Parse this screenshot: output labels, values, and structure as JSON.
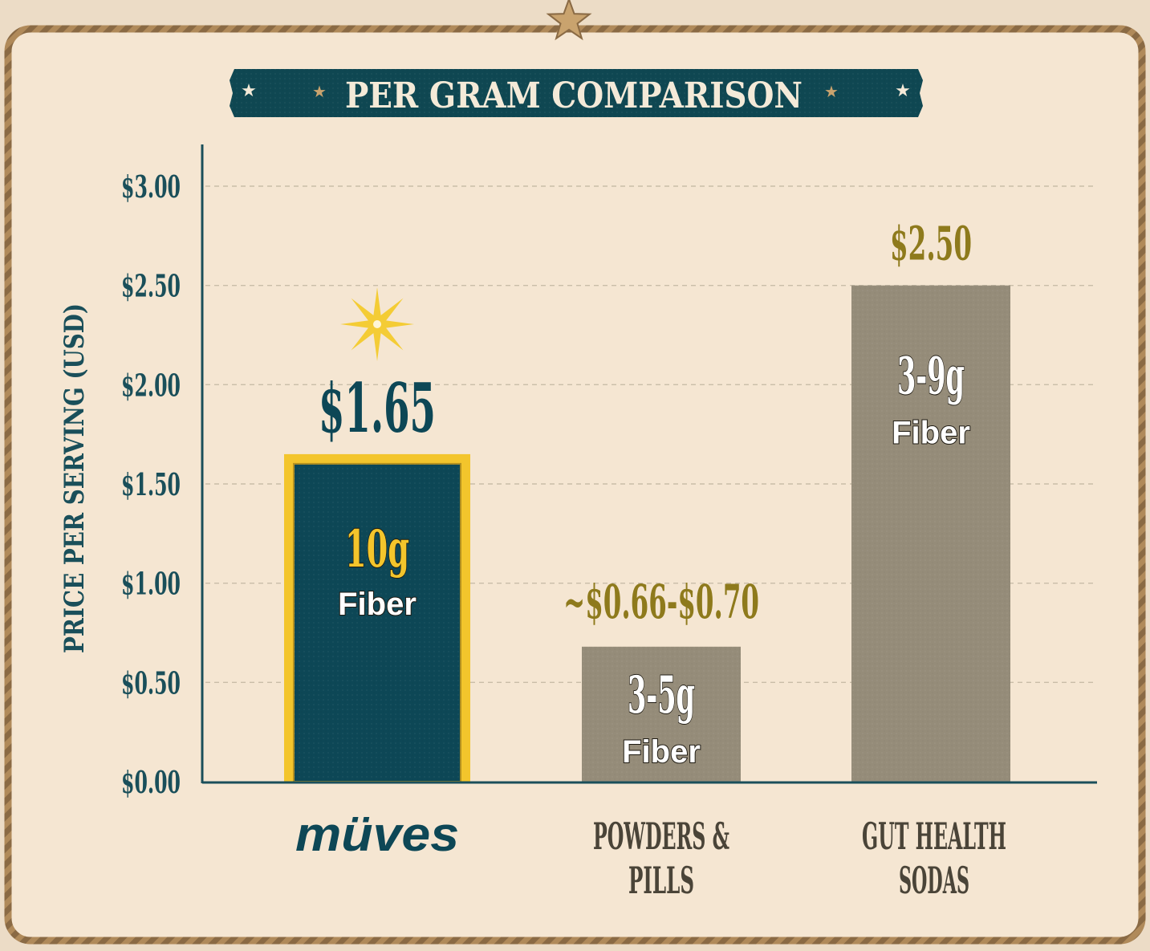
{
  "title": "PER GRAM COMPARISON",
  "colors": {
    "background": "#f5e6d2",
    "rope": "#8a6a44",
    "banner": "#0f4752",
    "banner_text": "#f4ead8",
    "axis": "#1a4f5a",
    "teal_bar": "#0d4756",
    "gold": "#f3c52c",
    "olive_label": "#8e7a1c",
    "gray_bar": "#958c79",
    "category_text": "#4a4438",
    "sheriff_star": "#f4cc35",
    "top_star": "#c9a36e"
  },
  "chart_data": {
    "type": "bar",
    "ylabel": "PRICE PER SERVING (USD)",
    "ylim": [
      0,
      3.0
    ],
    "yticks": [
      0,
      0.5,
      1.0,
      1.5,
      2.0,
      2.5,
      3.0
    ],
    "ytick_labels": [
      "$0.00",
      "$0.50",
      "$1.00",
      "$1.50",
      "$2.00",
      "$2.50",
      "$3.00"
    ],
    "grid": true,
    "categories": [
      "müves",
      "POWDERS & PILLS",
      "GUT HEALTH SODAS"
    ],
    "values": [
      1.65,
      0.68,
      2.5
    ],
    "value_labels": [
      "$1.65",
      "~$0.66-$0.70",
      "$2.50"
    ],
    "fiber_amounts": [
      "10g",
      "3-5g",
      "3-9g"
    ],
    "fiber_word": "Fiber"
  }
}
